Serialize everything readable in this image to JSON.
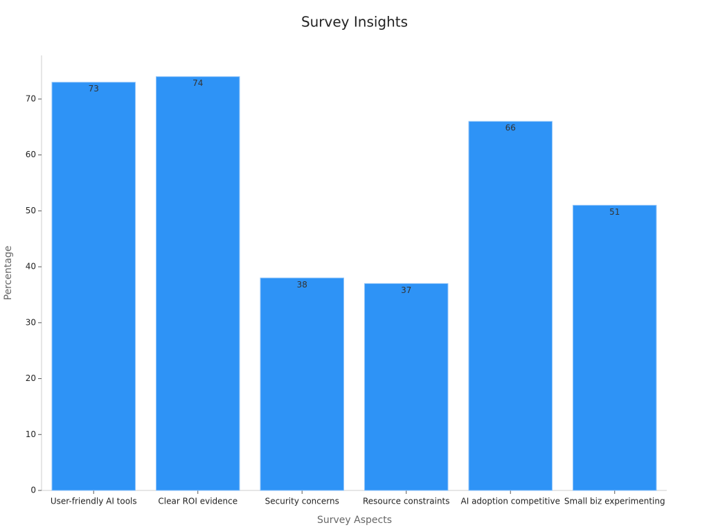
{
  "chart_data": {
    "type": "bar",
    "title": "Survey Insights",
    "x_label": "Survey Aspects",
    "y_label": "Percentage",
    "categories": [
      "User-friendly AI tools",
      "Clear ROI evidence",
      "Security concerns",
      "Resource constraints",
      "AI adoption competitive",
      "Small biz experimenting"
    ],
    "values": [
      73,
      74,
      38,
      37,
      66,
      51
    ],
    "color": "#2e93f6",
    "ylim": [
      0,
      77.8
    ],
    "yticks": [
      0,
      10,
      20,
      30,
      40,
      50,
      60,
      70
    ],
    "grid": false
  }
}
